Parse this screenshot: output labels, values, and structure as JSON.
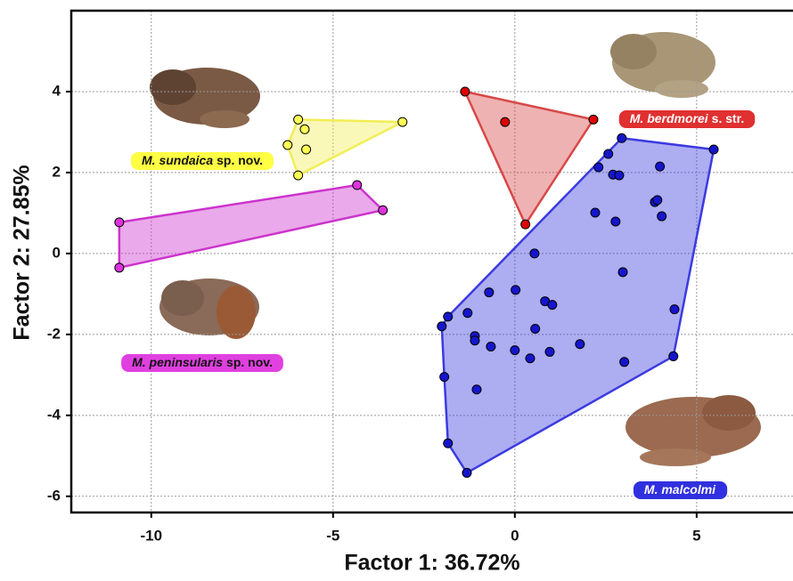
{
  "chart_data": {
    "type": "scatter",
    "x_label": "Factor 1: 36.72%",
    "y_label": "Factor 2: 27.85%",
    "xlim": [
      -12.2,
      7.65
    ],
    "ylim": [
      -6.4,
      6
    ],
    "xticks": [
      -10,
      -5,
      0,
      5
    ],
    "yticks": [
      -6,
      -4,
      -2,
      0,
      2,
      4
    ],
    "grid": true,
    "series": [
      {
        "name": "M. sundaica",
        "name_suffix": "sp. nov.",
        "color": "#ffff55",
        "hull_color": "#f2ee55",
        "x": [
          -5.96,
          -5.78,
          -3.09,
          -6.25,
          -5.74,
          -5.96
        ],
        "values": [
          3.31,
          3.07,
          3.25,
          2.68,
          2.57,
          1.93
        ]
      },
      {
        "name": "M. berdmorei",
        "name_suffix": "s. str.",
        "color": "#dd0000",
        "hull_color": "#d84848",
        "x": [
          -1.37,
          -0.27,
          2.16,
          0.29
        ],
        "values": [
          4.0,
          3.25,
          3.31,
          0.72
        ]
      },
      {
        "name": "M. peninsularis",
        "name_suffix": "sp. nov.",
        "color": "#dd33dd",
        "hull_color": "#cc33cc",
        "x": [
          -10.88,
          -10.88,
          -4.34,
          -3.63
        ],
        "values": [
          0.77,
          -0.35,
          1.69,
          1.07
        ]
      },
      {
        "name": "M. malcolmi",
        "color": "#1515cc",
        "hull_color": "#3b3be0",
        "x": [
          2.94,
          2.57,
          5.47,
          2.3,
          3.99,
          2.7,
          2.87,
          3.85,
          3.92,
          4.04,
          2.21,
          2.77,
          0.54,
          2.97,
          -0.71,
          0.02,
          0.83,
          1.03,
          -1.3,
          -1.84,
          4.39,
          -2.01,
          0.56,
          -1.1,
          -1.1,
          -0.66,
          0.0,
          0.42,
          0.96,
          1.79,
          3.01,
          4.36,
          -1.94,
          -1.05,
          -1.84,
          -1.32
        ],
        "values": [
          2.85,
          2.46,
          2.57,
          2.13,
          2.15,
          1.95,
          1.93,
          1.27,
          1.32,
          0.92,
          1.01,
          0.79,
          0.0,
          -0.46,
          -0.96,
          -0.9,
          -1.18,
          -1.27,
          -1.47,
          -1.56,
          -1.38,
          -1.8,
          -1.86,
          -2.04,
          -2.15,
          -2.3,
          -2.39,
          -2.59,
          -2.43,
          -2.24,
          -2.68,
          -2.54,
          -3.05,
          -3.36,
          -4.69,
          -5.42
        ]
      }
    ]
  }
}
